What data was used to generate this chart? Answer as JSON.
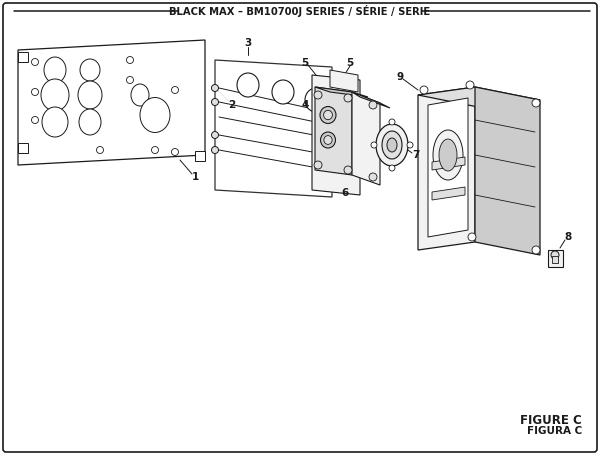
{
  "title": "BLACK MAX – BM10700J SERIES / SÉRIE / SERIE",
  "figure_label": "FIGURE C",
  "figura_label": "FIGURA C",
  "bg_color": "#ffffff",
  "lc": "#1a1a1a",
  "tc": "#1a1a1a",
  "fill_light": "#f2f2f2",
  "fill_mid": "#e0e0e0",
  "fill_dark": "#cccccc",
  "fill_white": "#ffffff"
}
